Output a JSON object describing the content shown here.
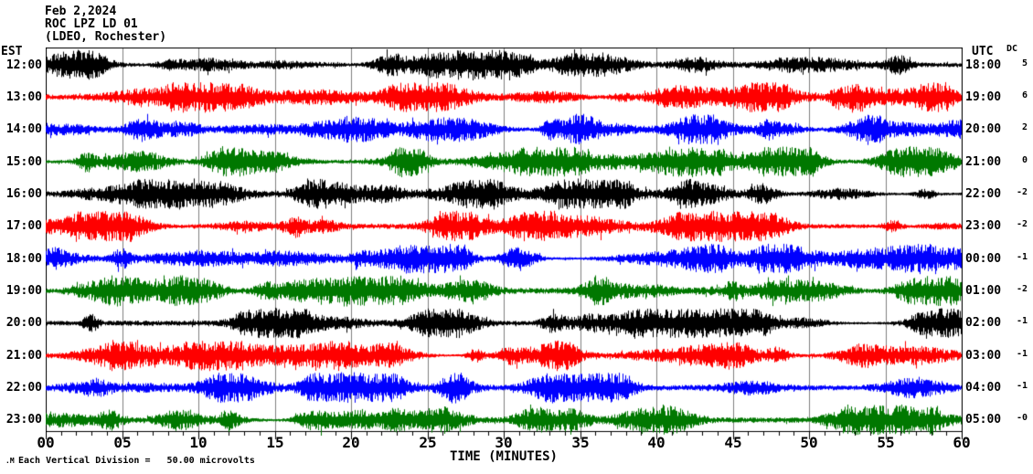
{
  "header": {
    "date": "Feb 2,2024",
    "station": "ROC LPZ LD 01",
    "network": "(LDEO, Rochester)"
  },
  "axes": {
    "left_title": "EST",
    "right_title": "UTC",
    "dc_title": "DC",
    "x_title": "TIME (MINUTES)"
  },
  "footer": {
    "scale_note": "Each Vertical Division =   50.00 microvolts",
    "corner_mark": ".M"
  },
  "chart_data": {
    "type": "line",
    "subtype": "helicorder-seismogram",
    "title": "ROC LPZ LD 01 (LDEO, Rochester) Feb 2,2024",
    "xlabel": "TIME (MINUTES)",
    "x_range_minutes": [
      0,
      60
    ],
    "x_major_tick_labels": [
      "00",
      "05",
      "10",
      "15",
      "20",
      "25",
      "30",
      "35",
      "40",
      "45",
      "50",
      "55",
      "60"
    ],
    "x_major_tick_interval_minutes": 5,
    "x_minor_tick_interval_minutes": 1,
    "grid_interval_minutes": 5,
    "vertical_division_microvolts": 50.0,
    "grid_color": "#808080",
    "frame_color": "#000000",
    "trace_color_cycle": [
      "#000000",
      "#ff0000",
      "#0000ff",
      "#007800"
    ],
    "rows": [
      {
        "est": "12:00",
        "utc": "18:00",
        "dc": "5",
        "color": "#000000"
      },
      {
        "est": "13:00",
        "utc": "19:00",
        "dc": "6",
        "color": "#ff0000"
      },
      {
        "est": "14:00",
        "utc": "20:00",
        "dc": "2",
        "color": "#0000ff"
      },
      {
        "est": "15:00",
        "utc": "21:00",
        "dc": "0",
        "color": "#007800"
      },
      {
        "est": "16:00",
        "utc": "22:00",
        "dc": "-2",
        "color": "#000000"
      },
      {
        "est": "17:00",
        "utc": "23:00",
        "dc": "-2",
        "color": "#ff0000"
      },
      {
        "est": "18:00",
        "utc": "00:00",
        "dc": "-1",
        "color": "#0000ff"
      },
      {
        "est": "19:00",
        "utc": "01:00",
        "dc": "-2",
        "color": "#007800"
      },
      {
        "est": "20:00",
        "utc": "02:00",
        "dc": "-1",
        "color": "#000000"
      },
      {
        "est": "21:00",
        "utc": "03:00",
        "dc": "-1",
        "color": "#ff0000"
      },
      {
        "est": "22:00",
        "utc": "04:00",
        "dc": "-1",
        "color": "#0000ff"
      },
      {
        "est": "23:00",
        "utc": "05:00",
        "dc": "-0",
        "color": "#007800"
      }
    ]
  }
}
